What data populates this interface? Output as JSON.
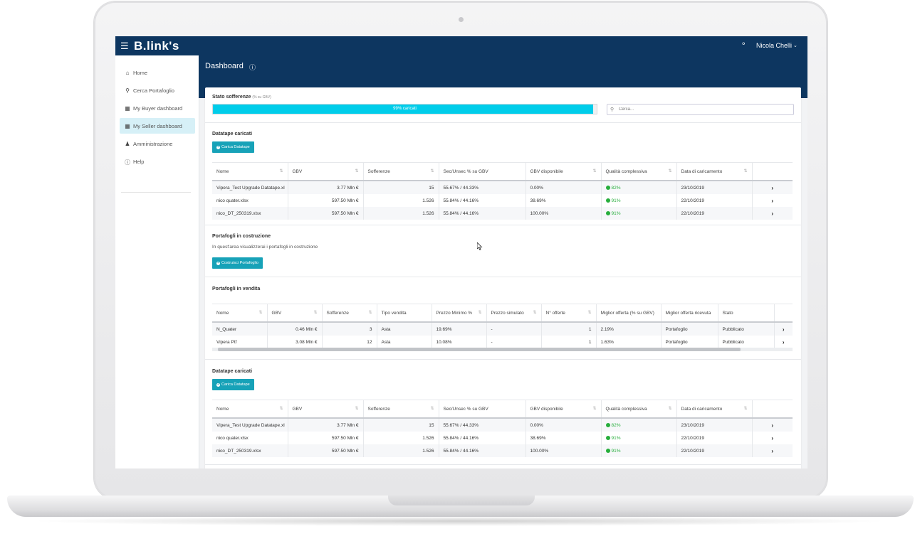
{
  "app": {
    "logo": "B.link's",
    "user": "Nicola Chelli",
    "menu_icon": "hamburger-icon",
    "bell_icon": "bell-icon"
  },
  "page": {
    "title": "Dashboard"
  },
  "sidebar": {
    "items": [
      {
        "label": "Home",
        "icon": "home-icon"
      },
      {
        "label": "Cerca Portafoglio",
        "icon": "search-icon"
      },
      {
        "label": "My Buyer dashboard",
        "icon": "grid-icon"
      },
      {
        "label": "My Seller dashboard",
        "icon": "grid-icon",
        "active": true
      },
      {
        "label": "Amministrazione",
        "icon": "users-icon"
      },
      {
        "label": "Help",
        "icon": "help-icon"
      }
    ]
  },
  "stato": {
    "title": "Stato sofferenze",
    "subtitle": "(% su GBV)",
    "progress_text": "99% caricati",
    "progress": 0.99,
    "search_placeholder": "Cerca..."
  },
  "datatape1": {
    "title": "Datatape caricati",
    "button": "Carica Datatape",
    "columns": [
      "Nome",
      "GBV",
      "Sofferenze",
      "Sec/Unsec % su GBV",
      "GBV disponibile",
      "Qualità complessiva",
      "Data di caricamento"
    ],
    "rows": [
      [
        "Vipera_Test Upgrade Datatape.xl",
        "3.77 Mln €",
        "15",
        "55.67% / 44.33%",
        "0.00%",
        "82%",
        "23/10/2019"
      ],
      [
        "nico quater.xlsx",
        "597.50 Mln €",
        "1.526",
        "55.84% / 44.16%",
        "38.69%",
        "91%",
        "22/10/2019"
      ],
      [
        "nico_DT_250319.xlsx",
        "597.50 Mln €",
        "1.526",
        "55.84% / 44.16%",
        "100.00%",
        "91%",
        "22/10/2019"
      ]
    ]
  },
  "costruzione": {
    "title": "Portafogli in costruzione",
    "text": "In quest'area visualizzerai i portafogli in costruzione",
    "button": "Costruisci Portafoglio"
  },
  "vendita": {
    "title": "Portafogli in vendita",
    "columns": [
      "Nome",
      "GBV",
      "Sofferenze",
      "Tipo vendita",
      "Prezzo Minimo %",
      "Prezzo simulato",
      "N° offerte",
      "Miglior offerta (% su GBV)",
      "Miglior offerta ricevuta",
      "Stato"
    ],
    "rows": [
      [
        "N_Quater",
        "0.46 Mln €",
        "3",
        "Asta",
        "19.69%",
        "-",
        "1",
        "2.19%",
        "Portafoglio",
        "Pubblicato"
      ],
      [
        "Vipera Ptf",
        "3.08 Mln €",
        "12",
        "Asta",
        "10.08%",
        "-",
        "1",
        "1.63%",
        "Portafoglio",
        "Pubblicato"
      ]
    ]
  },
  "datatape2": {
    "title": "Datatape caricati",
    "button": "Carica Datatape",
    "columns": [
      "Nome",
      "GBV",
      "Sofferenze",
      "Sec/Unsec % su GBV",
      "GBV disponibile",
      "Qualità complessiva",
      "Data di caricamento"
    ],
    "rows": [
      [
        "Vipera_Test Upgrade Datatape.xl",
        "3.77 Mln €",
        "15",
        "55.67% / 44.33%",
        "0.00%",
        "82%",
        "23/10/2019"
      ],
      [
        "nico quater.xlsx",
        "597.50 Mln €",
        "1.526",
        "55.84% / 44.16%",
        "38.69%",
        "91%",
        "22/10/2019"
      ],
      [
        "nico_DT_250319.xlsx",
        "597.50 Mln €",
        "1.526",
        "55.84% / 44.16%",
        "100.00%",
        "91%",
        "22/10/2019"
      ]
    ]
  },
  "colors": {
    "navbar": "#0d3660",
    "accent": "#00cdea",
    "button": "#17a2b8",
    "quality": "#27ae3c"
  }
}
